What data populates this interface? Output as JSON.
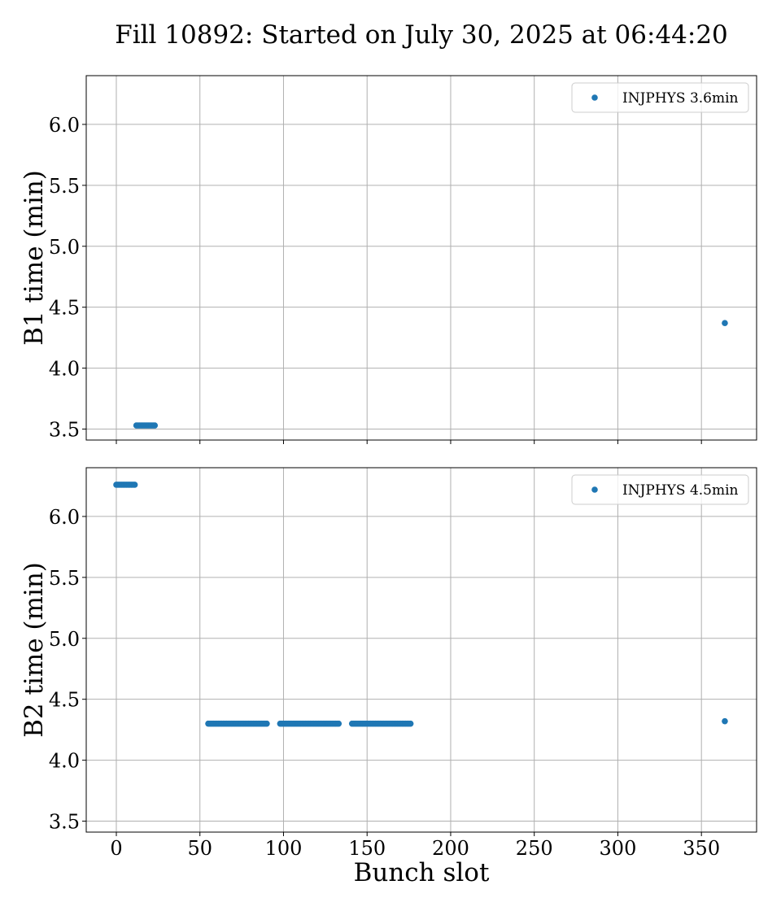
{
  "chart_data": {
    "title": "Fill 10892: Started on July 30, 2025 at 06:44:20",
    "type": "scatter",
    "color": "#1f77b4",
    "xlabel": "Bunch slot",
    "xlim": [
      -18,
      383
    ],
    "xticks": [
      0,
      50,
      100,
      150,
      200,
      250,
      300,
      350
    ],
    "grid": true,
    "legend_position": "top-right",
    "panels": [
      {
        "id": "b1",
        "ylabel": "B1 time (min)",
        "ylim": [
          3.41,
          6.4
        ],
        "yticks": [
          3.5,
          4.0,
          4.5,
          5.0,
          5.5,
          6.0
        ],
        "series": [
          {
            "name": "INJPHYS 3.6min",
            "groups": [
              {
                "x_start": 12,
                "x_end": 23,
                "step": 1,
                "y": 3.53
              },
              {
                "x_start": 364,
                "x_end": 364,
                "step": 1,
                "y": 4.37
              }
            ]
          }
        ]
      },
      {
        "id": "b2",
        "ylabel": "B2 time (min)",
        "ylim": [
          3.41,
          6.4
        ],
        "yticks": [
          3.5,
          4.0,
          4.5,
          5.0,
          5.5,
          6.0
        ],
        "series": [
          {
            "name": "INJPHYS 4.5min",
            "groups": [
              {
                "x_start": 0,
                "x_end": 11,
                "step": 1,
                "y": 6.26
              },
              {
                "x_start": 55,
                "x_end": 90,
                "step": 1,
                "y": 4.3
              },
              {
                "x_start": 98,
                "x_end": 133,
                "step": 1,
                "y": 4.3
              },
              {
                "x_start": 141,
                "x_end": 176,
                "step": 1,
                "y": 4.3
              },
              {
                "x_start": 364,
                "x_end": 364,
                "step": 1,
                "y": 4.32
              }
            ]
          }
        ]
      }
    ]
  }
}
